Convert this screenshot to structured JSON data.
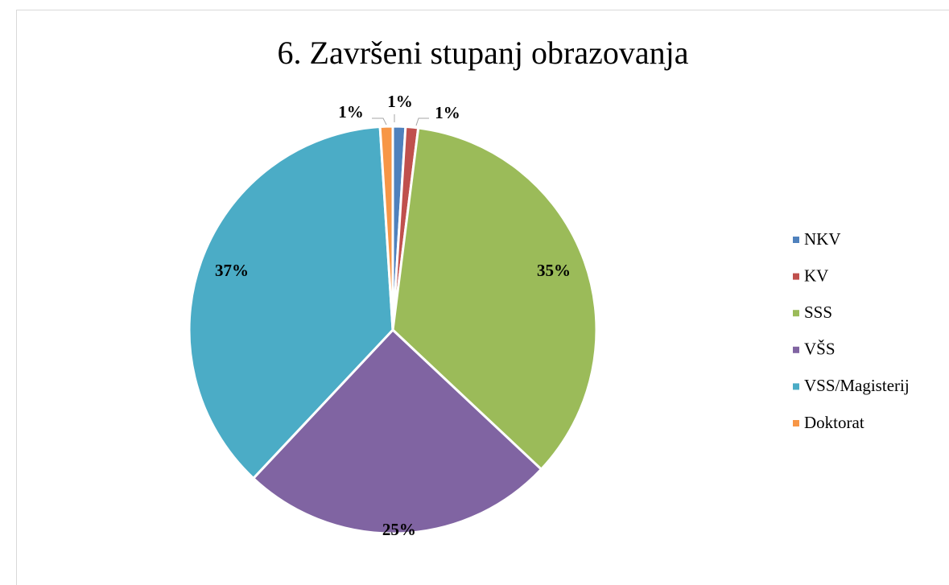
{
  "chart_data": {
    "type": "pie",
    "title": "6. Završeni stupanj obrazovanja",
    "categories": [
      "NKV",
      "KV",
      "SSS",
      "VŠS",
      "VSS/Magisterij",
      "Doktorat"
    ],
    "values": [
      1,
      1,
      35,
      25,
      37,
      1
    ],
    "value_labels": [
      "1%",
      "1%",
      "35%",
      "25%",
      "37%",
      "1%"
    ],
    "colors": [
      "#4f81bd",
      "#c0504d",
      "#9bbb59",
      "#8064a2",
      "#4bacc6",
      "#f79646"
    ],
    "legend": "right"
  }
}
